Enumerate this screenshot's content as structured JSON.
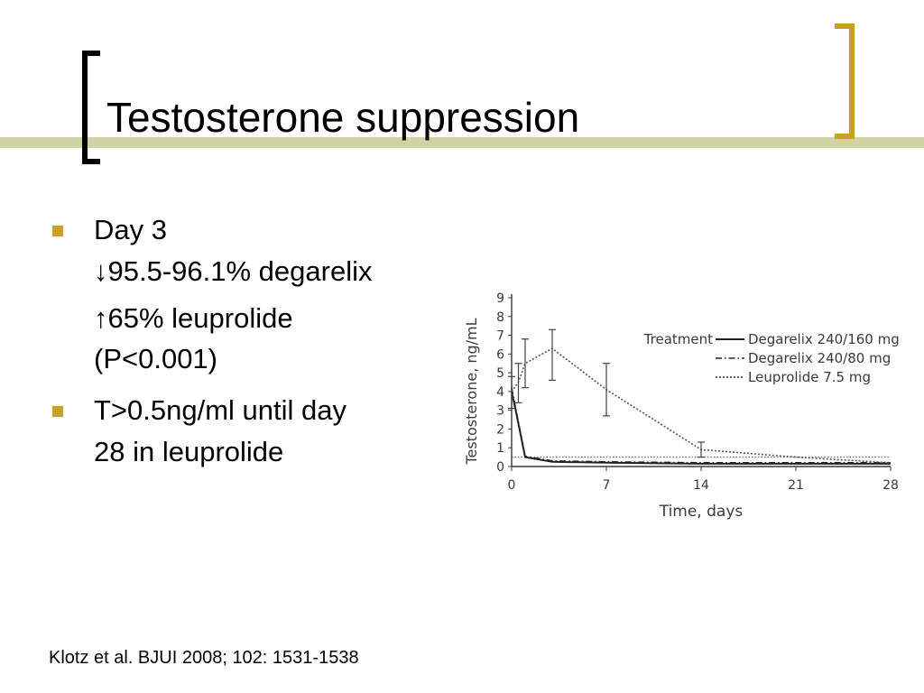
{
  "slide": {
    "title": "Testosterone suppression",
    "accent_color": "#c8a024",
    "band_color": "#d2d3a4",
    "bullet_color": "#c8a024",
    "bullets": [
      {
        "lines": [
          "Day 3",
          "↓95.5-96.1% degarelix",
          "↑65% leuprolide",
          "(P<0.001)"
        ]
      },
      {
        "lines": [
          "T>0.5ng/ml until day",
          "28 in leuprolide"
        ]
      }
    ],
    "citation": "Klotz et al. BJUI 2008; 102: 1531-1538"
  },
  "chart_data": {
    "type": "line",
    "xlabel": "Time, days",
    "ylabel": "Testosterone, ng/mL",
    "xlim": [
      0,
      28
    ],
    "ylim": [
      0,
      9
    ],
    "xticks": [
      0,
      7,
      14,
      21,
      28
    ],
    "yticks": [
      0,
      1,
      2,
      3,
      4,
      5,
      6,
      7,
      8,
      9
    ],
    "reference_line": 0.5,
    "grid": false,
    "legend_title": "Treatment",
    "legend_position": "top-right",
    "series": [
      {
        "name": "Degarelix 240/160 mg",
        "style": "solid",
        "x": [
          0,
          0.3,
          1,
          3,
          7,
          14,
          21,
          28
        ],
        "y": [
          4.0,
          3.0,
          0.5,
          0.25,
          0.2,
          0.15,
          0.15,
          0.15
        ]
      },
      {
        "name": "Degarelix 240/80 mg",
        "style": "dashdot",
        "x": [
          0,
          0.3,
          1,
          3,
          7,
          14,
          21,
          28
        ],
        "y": [
          4.2,
          3.1,
          0.55,
          0.3,
          0.25,
          0.2,
          0.2,
          0.2
        ]
      },
      {
        "name": "Leuprolide 7.5 mg",
        "style": "dotted",
        "x": [
          0,
          0.5,
          1,
          3,
          7,
          14,
          21,
          28
        ],
        "y": [
          4.0,
          4.5,
          5.5,
          6.3,
          4.1,
          0.9,
          0.5,
          0.2
        ],
        "error_bars": [
          {
            "x": 0,
            "lo": 3.1,
            "hi": 4.8
          },
          {
            "x": 0.5,
            "lo": 3.4,
            "hi": 5.5
          },
          {
            "x": 1,
            "lo": 4.2,
            "hi": 6.8
          },
          {
            "x": 3,
            "lo": 4.6,
            "hi": 7.3
          },
          {
            "x": 7,
            "lo": 2.7,
            "hi": 5.5
          },
          {
            "x": 14,
            "lo": 0.5,
            "hi": 1.3
          }
        ]
      }
    ]
  }
}
